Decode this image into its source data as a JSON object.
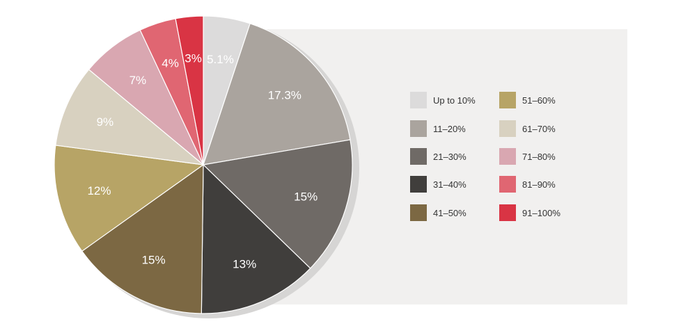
{
  "chart_data": {
    "type": "pie",
    "categories": [
      "Up to 10%",
      "11–20%",
      "21–30%",
      "31–40%",
      "41–50%",
      "51–60%",
      "61–70%",
      "71–80%",
      "81–90%",
      "91–100%"
    ],
    "values": [
      5.1,
      17.3,
      15,
      13,
      15,
      12,
      9,
      7,
      4,
      3
    ],
    "value_labels": [
      "5.1%",
      "17.3%",
      "15%",
      "13%",
      "15%",
      "12%",
      "9%",
      "7%",
      "4%",
      "3%"
    ],
    "colors": [
      "#dcdbdb",
      "#aaa49e",
      "#6f6a66",
      "#403e3c",
      "#7c6843",
      "#b7a466",
      "#d8d1c0",
      "#d9a7b1",
      "#e06672",
      "#d93444"
    ],
    "legend_placement": "right",
    "legend_columns": [
      [
        0,
        1,
        2,
        3,
        4
      ],
      [
        5,
        6,
        7,
        8,
        9
      ]
    ],
    "start_angle": "top",
    "direction": "clockwise",
    "panel_color": "#f1f0ef",
    "shadow_color": "#d6d5d4"
  }
}
